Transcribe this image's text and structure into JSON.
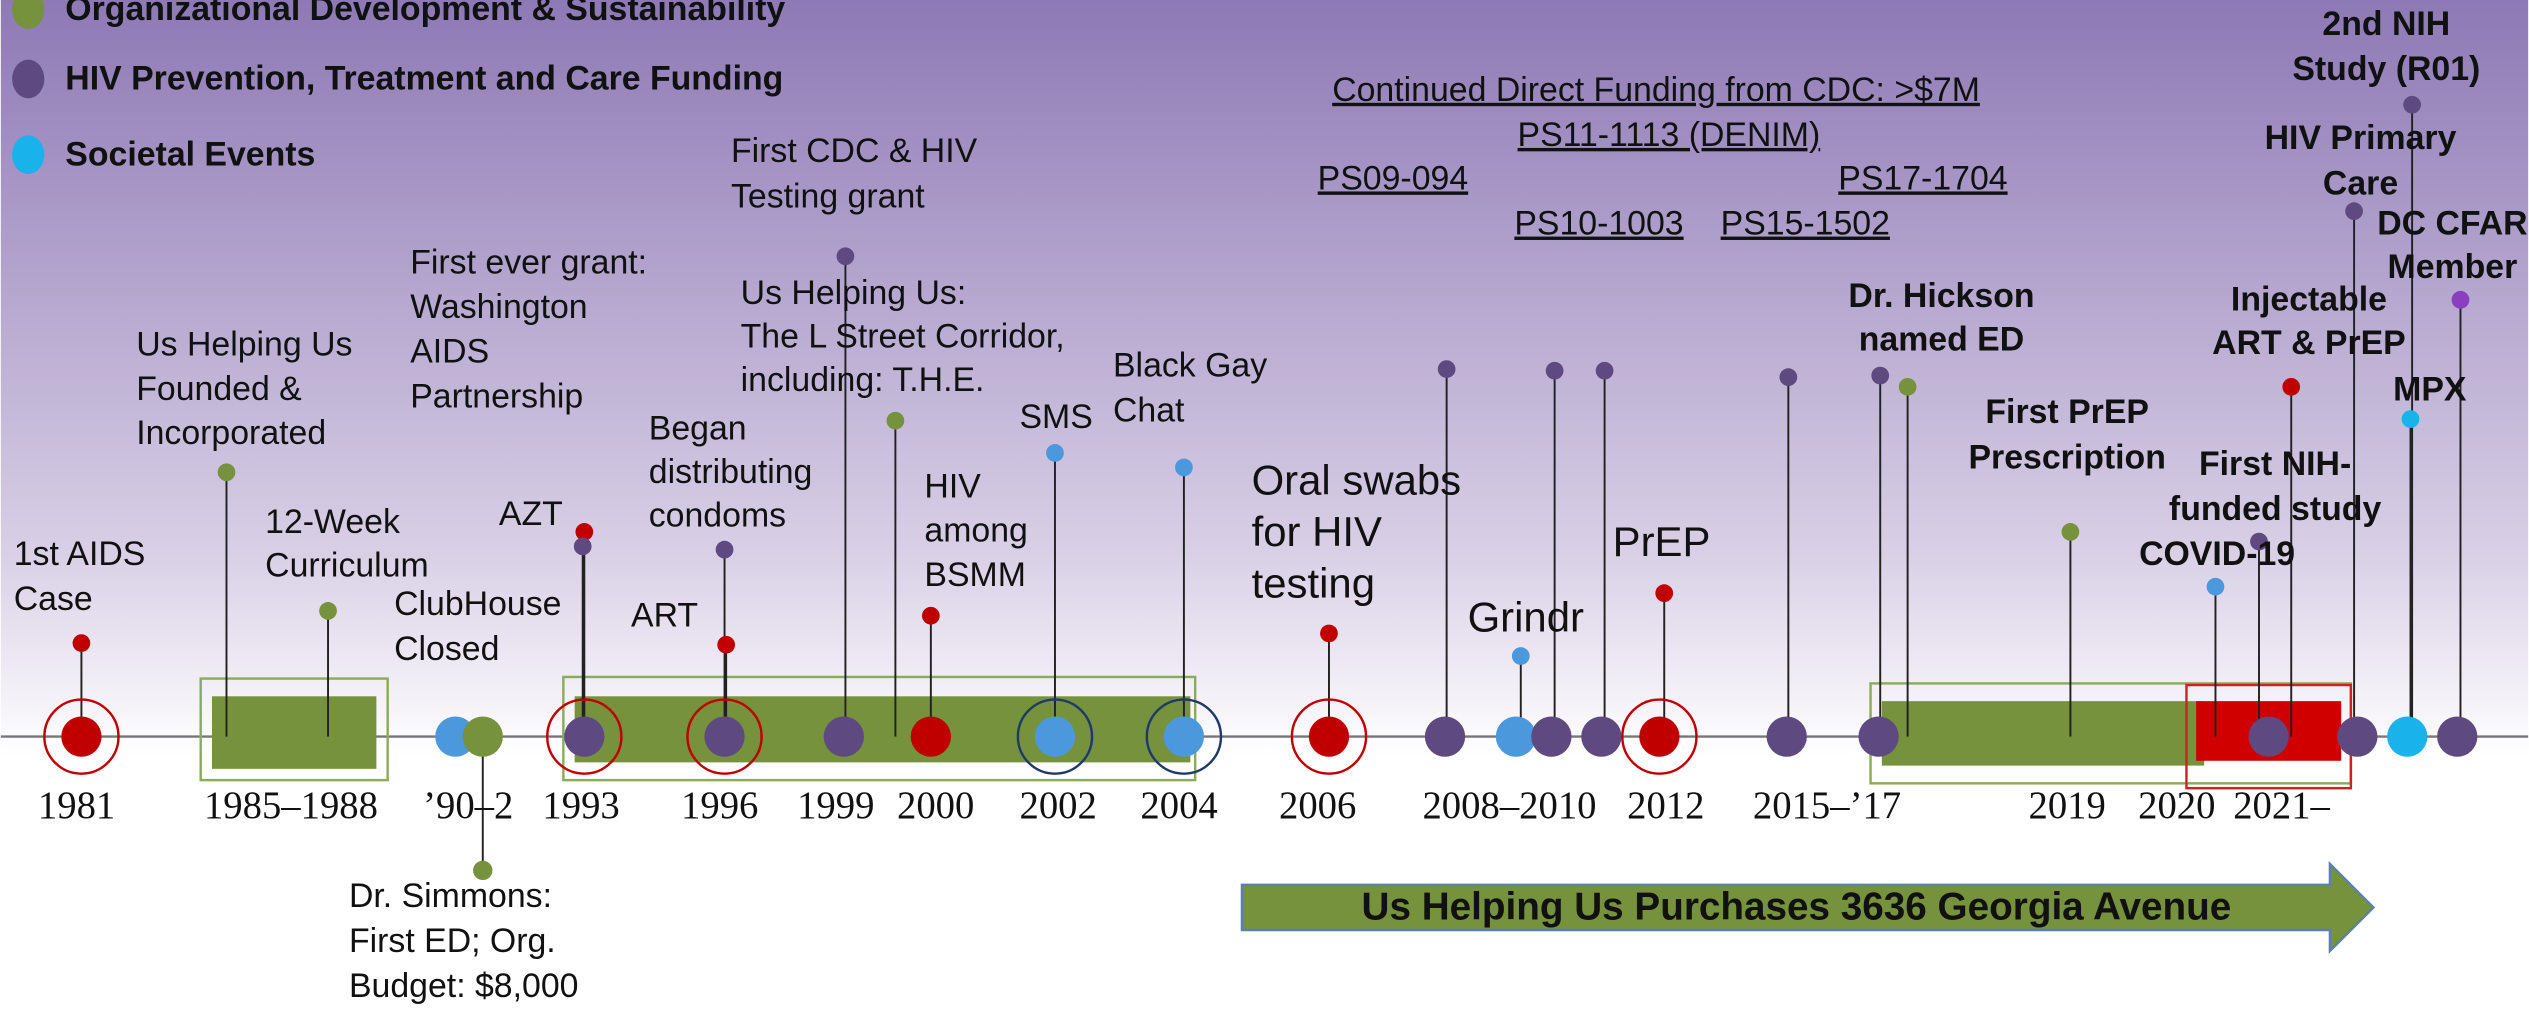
{
  "legend": [
    "Organizational Development & Sustainability",
    "HIV Prevention, Treatment and Care Funding",
    "Societal Events"
  ],
  "years": [
    "1981",
    "1985–1988",
    "’90–2",
    "1993",
    "1996",
    "1999",
    "2000",
    "2002",
    "2004",
    "2006",
    "2008–2010",
    "2012",
    "2015–’17",
    "2019",
    "2020",
    "2021–"
  ],
  "events": [
    {
      "lines": [
        "1st AIDS",
        "Case"
      ]
    },
    {
      "lines": [
        "Us Helping Us",
        "Founded &",
        "Incorporated"
      ]
    },
    {
      "lines": [
        "12-Week",
        "Curriculum"
      ]
    },
    {
      "lines": [
        "ClubHouse",
        "Closed"
      ]
    },
    {
      "lines": [
        "First ever grant:",
        "Washington",
        "AIDS",
        "Partnership"
      ]
    },
    {
      "lines": [
        "Dr. Simmons:",
        "First ED; Org.",
        "Budget: $8,000"
      ]
    },
    {
      "lines": [
        "AZT"
      ]
    },
    {
      "lines": [
        "ART"
      ]
    },
    {
      "lines": [
        "Began",
        "distributing",
        "condoms"
      ]
    },
    {
      "lines": [
        "First CDC &  HIV",
        "Testing grant"
      ]
    },
    {
      "lines": [
        "Us Helping Us:",
        "The L Street Corridor,",
        "including: T.H.E."
      ]
    },
    {
      "lines": [
        "HIV",
        "among",
        "BSMM"
      ]
    },
    {
      "lines": [
        "SMS"
      ]
    },
    {
      "lines": [
        "Black Gay",
        "Chat"
      ]
    },
    {
      "lines": [
        "Oral swabs",
        "for HIV",
        "testing"
      ]
    },
    {
      "lines": [
        "Grindr"
      ]
    },
    {
      "lines": [
        "PrEP"
      ]
    },
    {
      "lines": [
        "Dr. Hickson",
        "named ED"
      ]
    },
    {
      "lines": [
        "First PrEP",
        "Prescription"
      ]
    },
    {
      "lines": [
        "Injectable",
        "ART & PrEP"
      ]
    },
    {
      "lines": [
        "First NIH-",
        "funded study"
      ]
    },
    {
      "lines": [
        "COVID-19"
      ]
    },
    {
      "lines": [
        "2nd NIH",
        "Study (R01)"
      ]
    },
    {
      "lines": [
        "HIV Primary",
        "Care"
      ]
    },
    {
      "lines": [
        "DC CFAR",
        "Member"
      ]
    },
    {
      "lines": [
        "MPX"
      ]
    }
  ],
  "funding": [
    "Continued Direct Funding from CDC: >$7M",
    "PS11-1113 (DENIM)",
    "PS09-094",
    "PS17-1704",
    "PS10-1003",
    "PS15-1502"
  ],
  "banner": "Us Helping Us Purchases 3636 Georgia Avenue"
}
